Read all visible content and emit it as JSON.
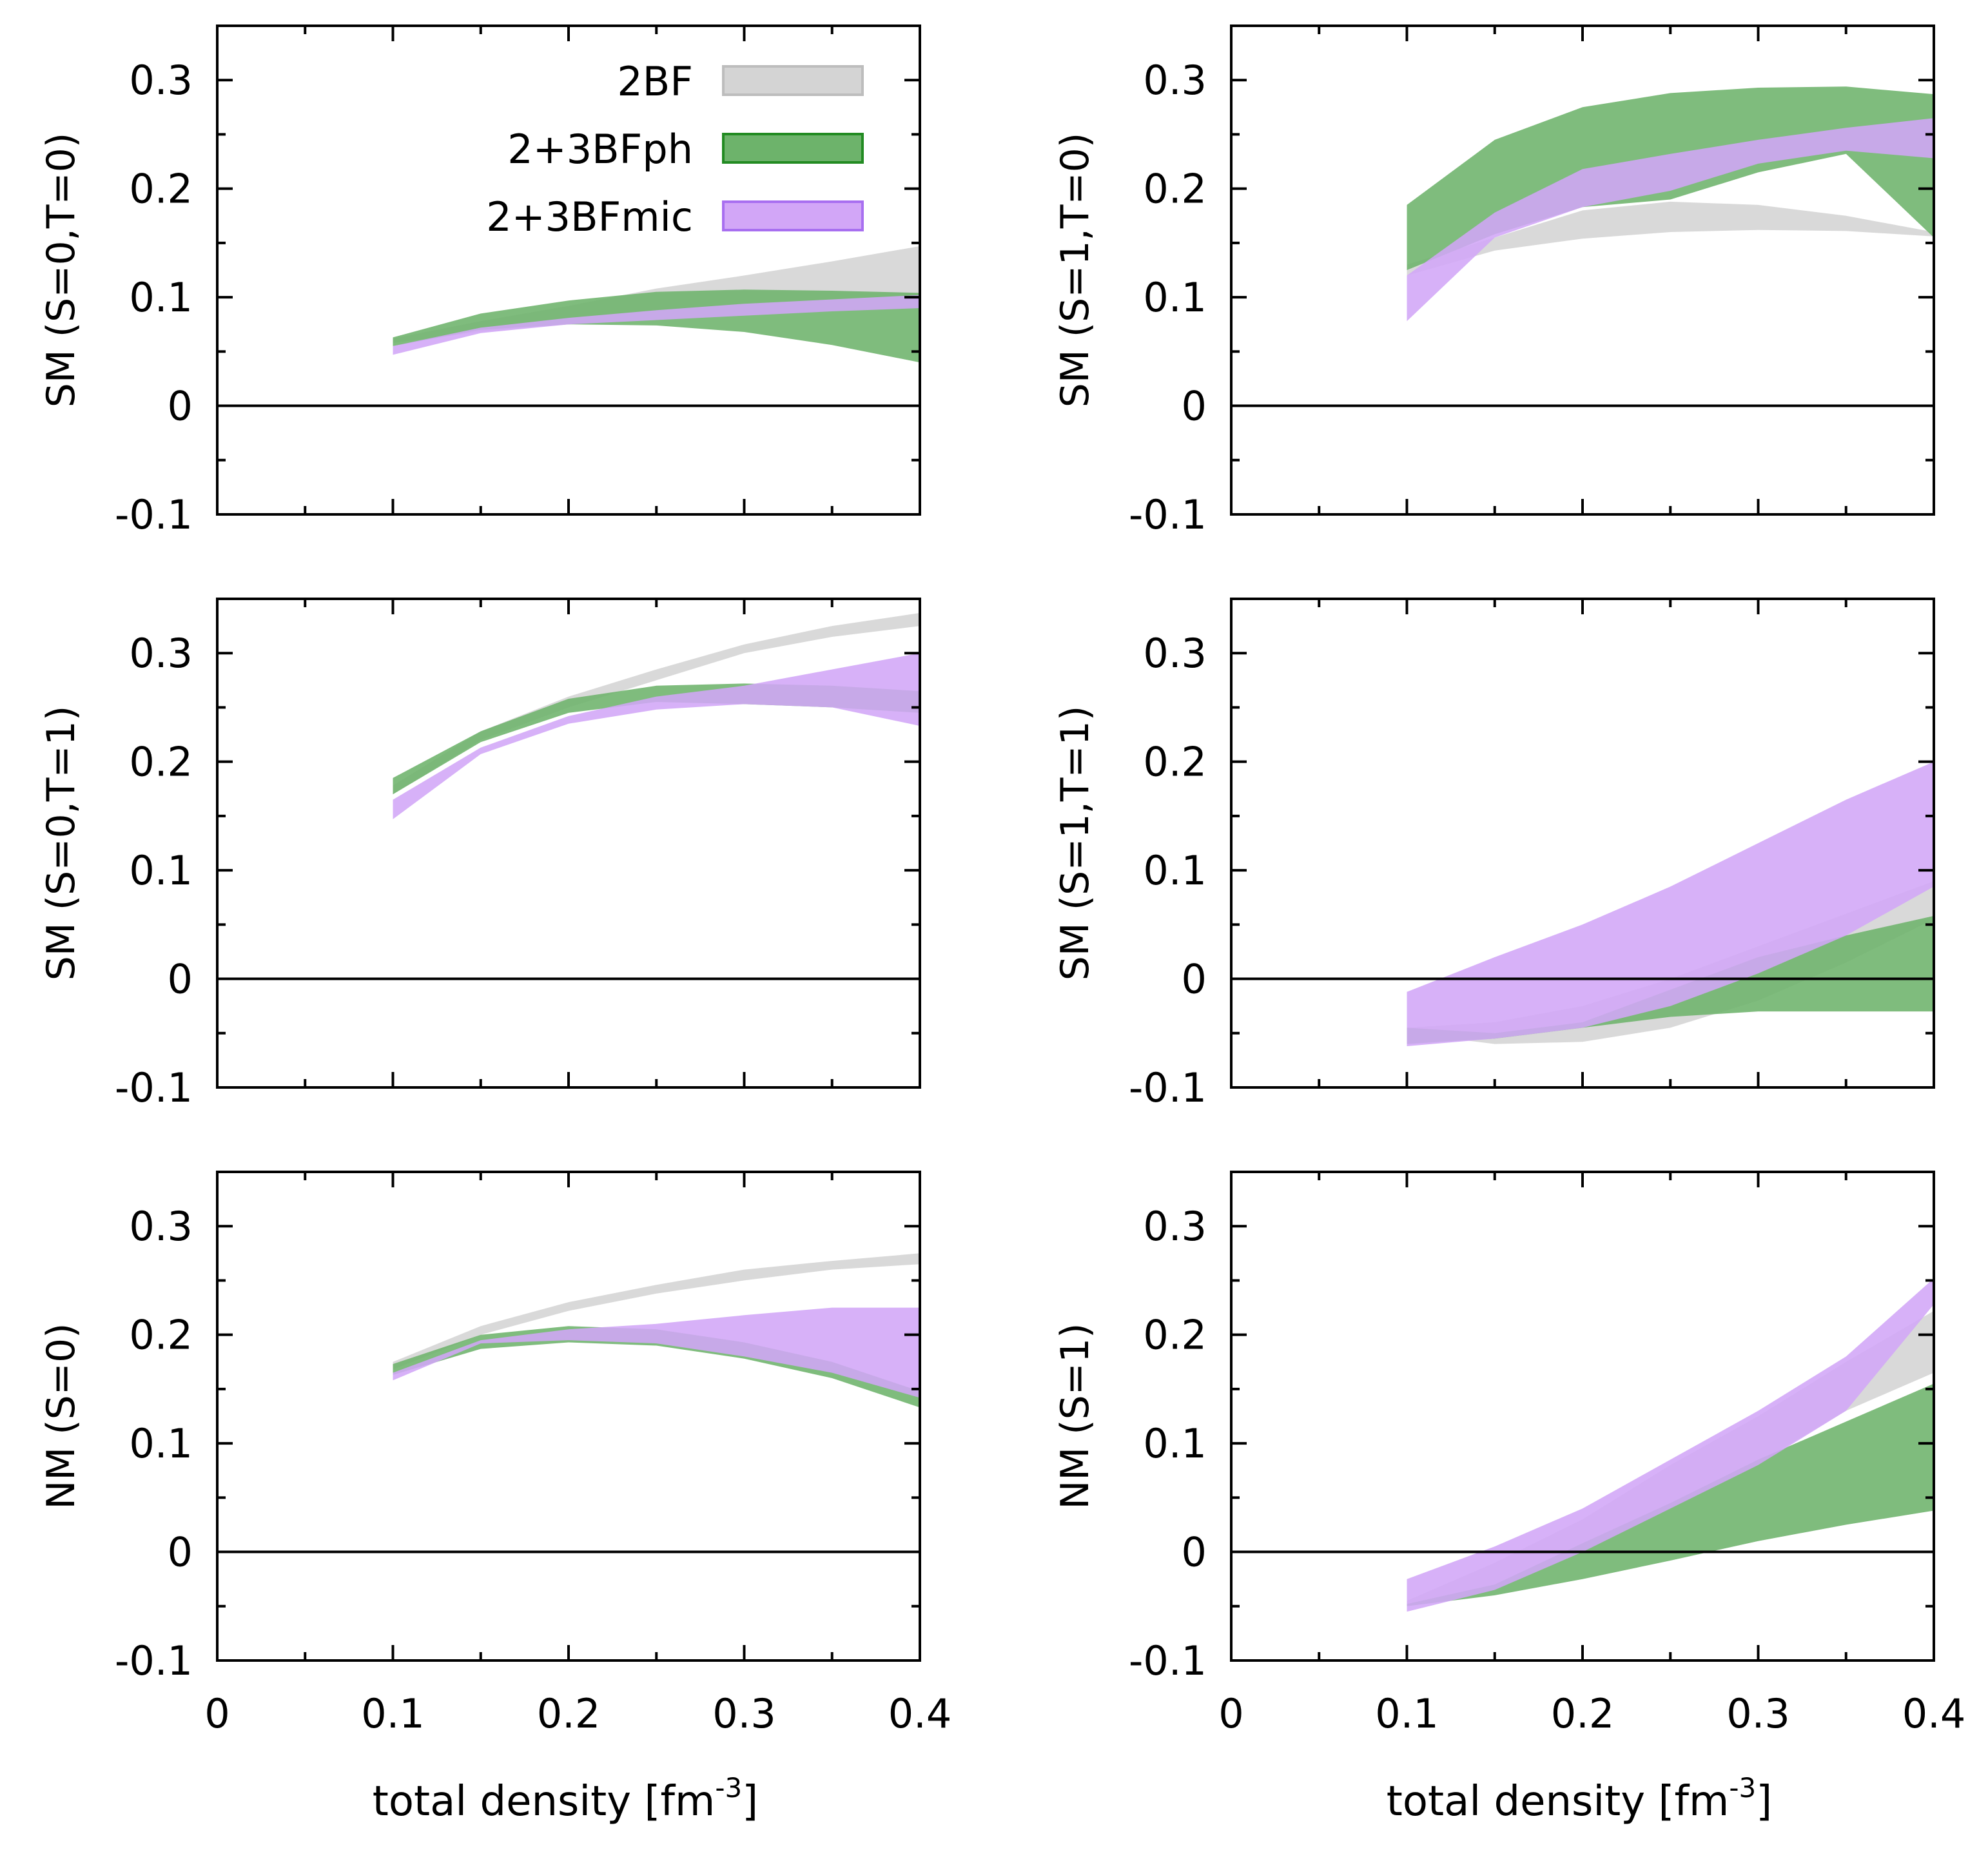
{
  "figure": {
    "x_axis_label": "total density [fm",
    "x_axis_label_sup": "-3",
    "x_axis_label_end": "]",
    "legend": [
      {
        "key": "2BF",
        "label": "2BF",
        "fill": "#d4d4d4",
        "stroke": "#bdbdbd"
      },
      {
        "key": "2+3BFph",
        "label": "2+3BFph",
        "fill": "#6db36b",
        "stroke": "#228b22"
      },
      {
        "key": "2+3BFmic",
        "label": "2+3BFmic",
        "fill": "#d2a6f7",
        "stroke": "#a86ff0"
      }
    ]
  },
  "chart_data": [
    {
      "type": "area",
      "panel": "top-left",
      "ylabel": "SM (S=0,T=0)",
      "xlim": [
        0,
        0.4
      ],
      "ylim": [
        -0.1,
        0.35
      ],
      "xticks": [
        "0",
        "0.1",
        "0.2",
        "0.3",
        "0.4"
      ],
      "yticks": [
        "-0.1",
        "0",
        "0.1",
        "0.2",
        "0.3"
      ],
      "x": [
        0.1,
        0.15,
        0.2,
        0.25,
        0.3,
        0.35,
        0.4
      ],
      "series": [
        {
          "name": "2BF",
          "lower": [
            0.058,
            0.068,
            0.075,
            0.08,
            0.085,
            0.09,
            0.095
          ],
          "upper": [
            0.062,
            0.078,
            0.092,
            0.108,
            0.12,
            0.133,
            0.147
          ]
        },
        {
          "name": "2+3BFph",
          "lower": [
            0.055,
            0.07,
            0.075,
            0.074,
            0.068,
            0.056,
            0.04
          ],
          "upper": [
            0.063,
            0.085,
            0.097,
            0.105,
            0.107,
            0.106,
            0.104
          ]
        },
        {
          "name": "2+3BFmic",
          "lower": [
            0.047,
            0.067,
            0.075,
            0.079,
            0.083,
            0.087,
            0.09
          ],
          "upper": [
            0.055,
            0.072,
            0.081,
            0.088,
            0.094,
            0.098,
            0.102
          ]
        }
      ]
    },
    {
      "type": "area",
      "panel": "top-right",
      "ylabel": "SM (S=1,T=0)",
      "xlim": [
        0,
        0.4
      ],
      "ylim": [
        -0.1,
        0.35
      ],
      "xticks": [
        "0",
        "0.1",
        "0.2",
        "0.3",
        "0.4"
      ],
      "yticks": [
        "-0.1",
        "0",
        "0.1",
        "0.2",
        "0.3"
      ],
      "x": [
        0.1,
        0.15,
        0.2,
        0.25,
        0.3,
        0.35,
        0.4
      ],
      "series": [
        {
          "name": "2BF",
          "lower": [
            0.12,
            0.143,
            0.154,
            0.16,
            0.162,
            0.161,
            0.156
          ],
          "upper": [
            0.13,
            0.155,
            0.18,
            0.188,
            0.185,
            0.175,
            0.16
          ]
        },
        {
          "name": "2+3BFph",
          "lower": [
            0.125,
            0.158,
            0.183,
            0.19,
            0.215,
            0.232,
            0.155
          ],
          "upper": [
            0.185,
            0.245,
            0.275,
            0.288,
            0.293,
            0.294,
            0.287
          ]
        },
        {
          "name": "2+3BFmic",
          "lower": [
            0.078,
            0.155,
            0.183,
            0.198,
            0.223,
            0.235,
            0.228
          ],
          "upper": [
            0.12,
            0.178,
            0.218,
            0.232,
            0.245,
            0.256,
            0.265
          ]
        }
      ]
    },
    {
      "type": "area",
      "panel": "middle-left",
      "ylabel": "SM (S=0,T=1)",
      "xlim": [
        0,
        0.4
      ],
      "ylim": [
        -0.1,
        0.35
      ],
      "xticks": [
        "0",
        "0.1",
        "0.2",
        "0.3",
        "0.4"
      ],
      "yticks": [
        "-0.1",
        "0",
        "0.1",
        "0.2",
        "0.3"
      ],
      "x": [
        0.1,
        0.15,
        0.2,
        0.25,
        0.3,
        0.35,
        0.4
      ],
      "series": [
        {
          "name": "2BF",
          "lower": [
            0.17,
            0.22,
            0.25,
            0.275,
            0.3,
            0.315,
            0.325
          ],
          "upper": [
            0.178,
            0.228,
            0.26,
            0.285,
            0.308,
            0.325,
            0.337
          ]
        },
        {
          "name": "2+3BFph",
          "lower": [
            0.17,
            0.218,
            0.245,
            0.255,
            0.253,
            0.25,
            0.245
          ],
          "upper": [
            0.185,
            0.228,
            0.258,
            0.27,
            0.272,
            0.27,
            0.265
          ]
        },
        {
          "name": "2+3BFmic",
          "lower": [
            0.147,
            0.207,
            0.235,
            0.248,
            0.253,
            0.25,
            0.233
          ],
          "upper": [
            0.165,
            0.213,
            0.242,
            0.26,
            0.27,
            0.285,
            0.3
          ]
        }
      ]
    },
    {
      "type": "area",
      "panel": "middle-right",
      "ylabel": "SM (S=1,T=1)",
      "xlim": [
        0,
        0.4
      ],
      "ylim": [
        -0.1,
        0.35
      ],
      "xticks": [
        "0",
        "0.1",
        "0.2",
        "0.3",
        "0.4"
      ],
      "yticks": [
        "-0.1",
        "0",
        "0.1",
        "0.2",
        "0.3"
      ],
      "x": [
        0.1,
        0.15,
        0.2,
        0.25,
        0.3,
        0.35,
        0.4
      ],
      "series": [
        {
          "name": "2BF",
          "lower": [
            -0.05,
            -0.06,
            -0.058,
            -0.045,
            -0.02,
            0.015,
            0.055
          ],
          "upper": [
            -0.045,
            -0.04,
            -0.025,
            0,
            0.03,
            0.06,
            0.09
          ]
        },
        {
          "name": "2+3BFph",
          "lower": [
            -0.06,
            -0.055,
            -0.045,
            -0.035,
            -0.03,
            -0.03,
            -0.03
          ],
          "upper": [
            -0.045,
            -0.05,
            -0.04,
            -0.01,
            0.02,
            0.04,
            0.058
          ]
        },
        {
          "name": "2+3BFmic",
          "lower": [
            -0.062,
            -0.055,
            -0.045,
            -0.025,
            0.005,
            0.04,
            0.085
          ],
          "upper": [
            -0.012,
            0.02,
            0.05,
            0.085,
            0.125,
            0.165,
            0.2
          ]
        }
      ]
    },
    {
      "type": "area",
      "panel": "bottom-left",
      "ylabel": "NM (S=0)",
      "xlim": [
        0,
        0.4
      ],
      "ylim": [
        -0.1,
        0.35
      ],
      "xticks": [
        "0",
        "0.1",
        "0.2",
        "0.3",
        "0.4"
      ],
      "yticks": [
        "-0.1",
        "0",
        "0.1",
        "0.2",
        "0.3"
      ],
      "x": [
        0.1,
        0.15,
        0.2,
        0.25,
        0.3,
        0.35,
        0.4
      ],
      "series": [
        {
          "name": "2BF",
          "lower": [
            0.168,
            0.2,
            0.222,
            0.238,
            0.25,
            0.26,
            0.265
          ],
          "upper": [
            0.175,
            0.208,
            0.23,
            0.246,
            0.26,
            0.268,
            0.275
          ]
        },
        {
          "name": "2+3BFph",
          "lower": [
            0.163,
            0.187,
            0.193,
            0.19,
            0.178,
            0.16,
            0.133
          ],
          "upper": [
            0.173,
            0.2,
            0.208,
            0.205,
            0.193,
            0.175,
            0.148
          ]
        },
        {
          "name": "2+3BFmic",
          "lower": [
            0.158,
            0.192,
            0.195,
            0.192,
            0.18,
            0.165,
            0.142
          ],
          "upper": [
            0.165,
            0.195,
            0.205,
            0.21,
            0.218,
            0.225,
            0.225
          ]
        }
      ]
    },
    {
      "type": "area",
      "panel": "bottom-right",
      "ylabel": "NM (S=1)",
      "xlim": [
        0,
        0.4
      ],
      "ylim": [
        -0.1,
        0.35
      ],
      "xticks": [
        "0",
        "0.1",
        "0.2",
        "0.3",
        "0.4"
      ],
      "yticks": [
        "-0.1",
        "0",
        "0.1",
        "0.2",
        "0.3"
      ],
      "x": [
        0.1,
        0.15,
        0.2,
        0.25,
        0.3,
        0.35,
        0.4
      ],
      "series": [
        {
          "name": "2BF",
          "lower": [
            -0.05,
            -0.03,
            0.002,
            0.04,
            0.082,
            0.13,
            0.165
          ],
          "upper": [
            -0.045,
            -0.01,
            0.03,
            0.08,
            0.125,
            0.175,
            0.222
          ]
        },
        {
          "name": "2+3BFph",
          "lower": [
            -0.05,
            -0.04,
            -0.025,
            -0.008,
            0.01,
            0.025,
            0.038
          ],
          "upper": [
            -0.048,
            -0.03,
            0.008,
            0.045,
            0.085,
            0.12,
            0.155
          ]
        },
        {
          "name": "2+3BFmic",
          "lower": [
            -0.055,
            -0.035,
            0.0,
            0.04,
            0.08,
            0.13,
            0.228
          ],
          "upper": [
            -0.025,
            0.005,
            0.04,
            0.085,
            0.13,
            0.18,
            0.252
          ]
        }
      ]
    }
  ]
}
